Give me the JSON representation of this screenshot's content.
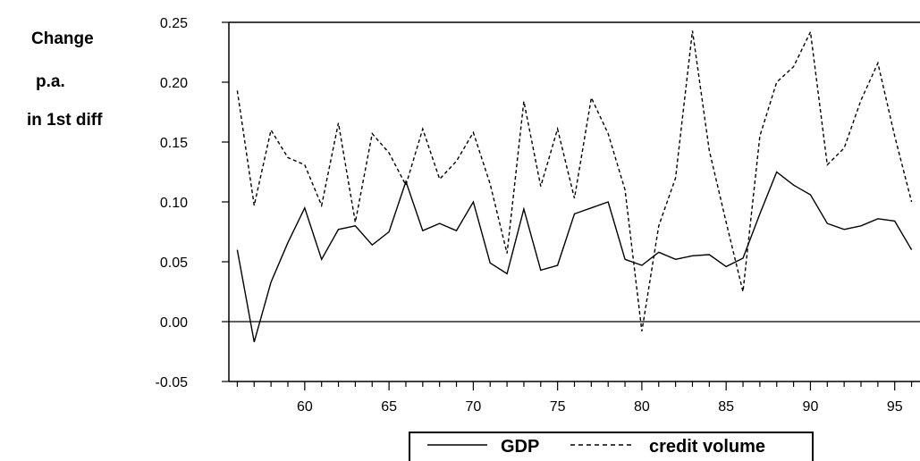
{
  "side_label": [
    "Change",
    "p.a.",
    "in 1st diff"
  ],
  "legend": {
    "gdp_label": "GDP",
    "credit_label": "credit volume",
    "placement": "bottom-center"
  },
  "chart_data": {
    "type": "line",
    "title": "",
    "xlabel": "",
    "ylabel": "",
    "xlim": [
      55.5,
      96.5
    ],
    "ylim": [
      -0.05,
      0.25
    ],
    "y_ticks": [
      -0.05,
      0.0,
      0.05,
      0.1,
      0.15,
      0.2,
      0.25
    ],
    "y_tick_labels": [
      "-0.05",
      "0.00",
      "0.05",
      "0.10",
      "0.15",
      "0.20",
      "0.25"
    ],
    "x_ticks": [
      60,
      65,
      70,
      75,
      80,
      85,
      90,
      95
    ],
    "x_tick_labels": [
      "60",
      "65",
      "70",
      "75",
      "80",
      "85",
      "90",
      "95"
    ],
    "zero_line": true,
    "grid": false,
    "x": [
      56,
      57,
      58,
      59,
      60,
      61,
      62,
      63,
      64,
      65,
      66,
      67,
      68,
      69,
      70,
      71,
      72,
      73,
      74,
      75,
      76,
      77,
      78,
      79,
      80,
      81,
      82,
      83,
      84,
      85,
      86,
      87,
      88,
      89,
      90,
      91,
      92,
      93,
      94,
      95,
      96
    ],
    "series": [
      {
        "name": "GDP",
        "style": "solid",
        "color": "#000000",
        "values": [
          0.06,
          -0.017,
          0.033,
          0.066,
          0.095,
          0.052,
          0.077,
          0.08,
          0.064,
          0.075,
          0.117,
          0.076,
          0.082,
          0.076,
          0.1,
          0.049,
          0.04,
          0.094,
          0.043,
          0.047,
          0.09,
          0.095,
          0.1,
          0.052,
          0.047,
          0.058,
          0.052,
          0.055,
          0.056,
          0.046,
          0.053,
          0.09,
          0.125,
          0.114,
          0.106,
          0.082,
          0.077,
          0.08,
          0.086,
          0.084,
          0.06
        ]
      },
      {
        "name": "credit volume",
        "style": "dashed",
        "color": "#000000",
        "values": [
          0.193,
          0.097,
          0.16,
          0.137,
          0.131,
          0.097,
          0.166,
          0.083,
          0.157,
          0.141,
          0.114,
          0.161,
          0.119,
          0.134,
          0.158,
          0.115,
          0.057,
          0.184,
          0.113,
          0.161,
          0.103,
          0.187,
          0.157,
          0.11,
          -0.008,
          0.08,
          0.12,
          0.243,
          0.143,
          0.083,
          0.025,
          0.155,
          0.2,
          0.213,
          0.242,
          0.131,
          0.145,
          0.185,
          0.216,
          0.155,
          0.1
        ]
      }
    ]
  }
}
